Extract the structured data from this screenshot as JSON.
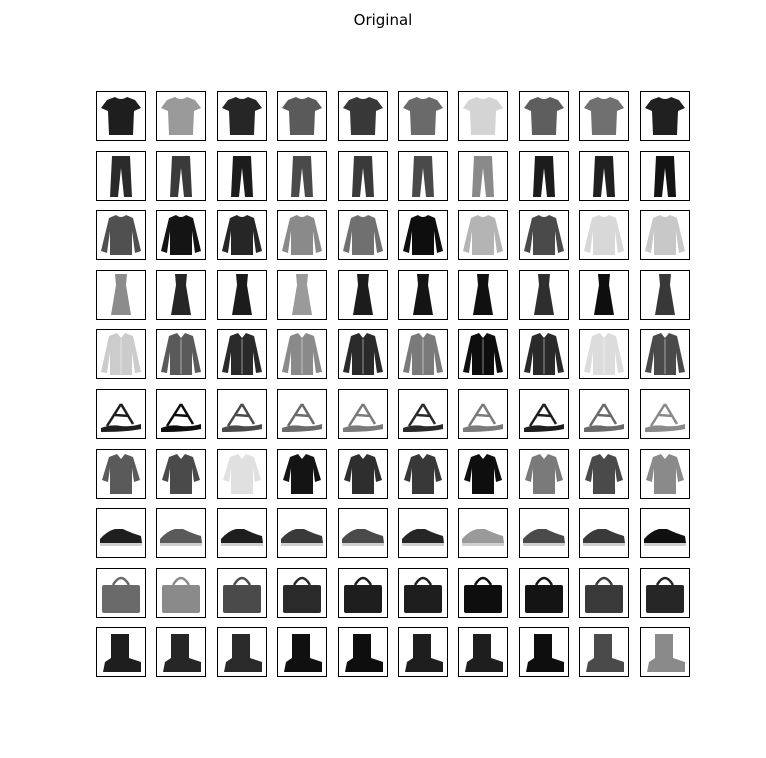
{
  "title": "Original",
  "colors": {
    "background": "#ffffff",
    "frame": "#000000"
  },
  "rows": [
    {
      "category": "top",
      "tones": [
        "#1e1e1e",
        "#9a9a9a",
        "#262626",
        "#5a5a5a",
        "#383838",
        "#6a6a6a",
        "#d4d4d4",
        "#5e5e5e",
        "#707070",
        "#202020"
      ]
    },
    {
      "category": "trouser",
      "tones": [
        "#2a2a2a",
        "#3a3a3a",
        "#1c1c1c",
        "#4a4a4a",
        "#3a3a3a",
        "#4a4a4a",
        "#8a8a8a",
        "#1c1c1c",
        "#202020",
        "#141414"
      ]
    },
    {
      "category": "pullover",
      "tones": [
        "#505050",
        "#141414",
        "#262626",
        "#8a8a8a",
        "#707070",
        "#0e0e0e",
        "#b4b4b4",
        "#4a4a4a",
        "#d8d8d8",
        "#c8c8c8"
      ]
    },
    {
      "category": "dress",
      "tones": [
        "#8c8c8c",
        "#262626",
        "#1c1c1c",
        "#9a9a9a",
        "#1c1c1c",
        "#141414",
        "#101010",
        "#2e2e2e",
        "#0e0e0e",
        "#383838"
      ]
    },
    {
      "category": "coat",
      "tones": [
        "#cccccc",
        "#5a5a5a",
        "#2a2a2a",
        "#8a8a8a",
        "#2a2a2a",
        "#7a7a7a",
        "#0e0e0e",
        "#2a2a2a",
        "#dcdcdc",
        "#4a4a4a"
      ]
    },
    {
      "category": "sandal",
      "tones": [
        "#1e1e1e",
        "#0e0e0e",
        "#4a4a4a",
        "#6a6a6a",
        "#7a7a7a",
        "#2a2a2a",
        "#7a7a7a",
        "#1e1e1e",
        "#6a6a6a",
        "#8a8a8a"
      ]
    },
    {
      "category": "shirt",
      "tones": [
        "#5a5a5a",
        "#4a4a4a",
        "#e0e0e0",
        "#141414",
        "#2e2e2e",
        "#383838",
        "#0e0e0e",
        "#7a7a7a",
        "#4a4a4a",
        "#8a8a8a"
      ]
    },
    {
      "category": "sneaker",
      "tones": [
        "#1e1e1e",
        "#5a5a5a",
        "#1e1e1e",
        "#3a3a3a",
        "#4a4a4a",
        "#262626",
        "#9a9a9a",
        "#4a4a4a",
        "#3a3a3a",
        "#101010"
      ]
    },
    {
      "category": "bag",
      "tones": [
        "#6a6a6a",
        "#8a8a8a",
        "#4a4a4a",
        "#2a2a2a",
        "#1e1e1e",
        "#1e1e1e",
        "#0e0e0e",
        "#141414",
        "#3a3a3a",
        "#262626"
      ]
    },
    {
      "category": "boot",
      "tones": [
        "#1e1e1e",
        "#262626",
        "#2a2a2a",
        "#101010",
        "#0e0e0e",
        "#1e1e1e",
        "#1e1e1e",
        "#0e0e0e",
        "#4a4a4a",
        "#8a8a8a"
      ]
    }
  ]
}
